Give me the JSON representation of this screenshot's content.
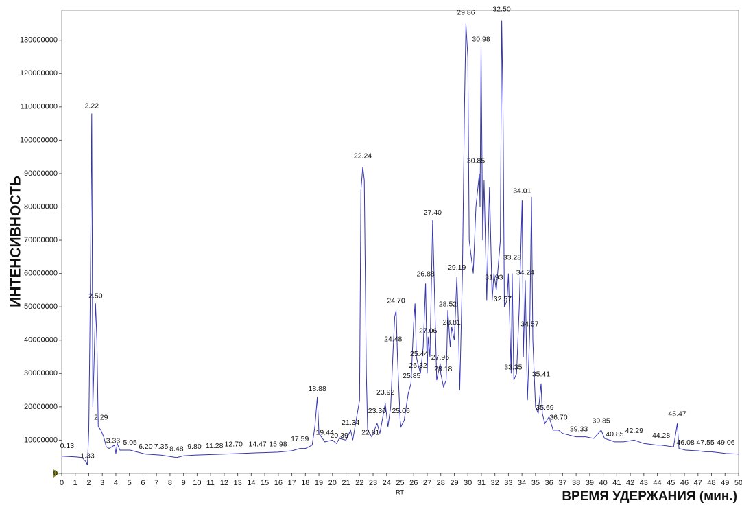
{
  "chart_data": {
    "type": "line",
    "x_label": "ВРЕМЯ УДЕРЖАНИЯ (мин.)",
    "x_sublabel": "RT",
    "y_label": "ИНТЕНСИВНОСТЬ",
    "xlim": [
      0,
      50
    ],
    "ylim": [
      0,
      139000000
    ],
    "xticks": [
      0,
      1,
      2,
      3,
      4,
      5,
      6,
      7,
      8,
      9,
      10,
      11,
      12,
      13,
      14,
      15,
      16,
      17,
      18,
      19,
      20,
      21,
      22,
      23,
      24,
      25,
      26,
      27,
      28,
      29,
      30,
      31,
      32,
      33,
      34,
      35,
      36,
      37,
      38,
      39,
      40,
      41,
      42,
      43,
      44,
      45,
      46,
      47,
      48,
      49,
      50
    ],
    "yticks": [
      0,
      10000000,
      20000000,
      30000000,
      40000000,
      50000000,
      60000000,
      70000000,
      80000000,
      90000000,
      100000000,
      110000000,
      120000000,
      130000000
    ],
    "series": [
      {
        "color": "#3535b0",
        "x": [
          0,
          1,
          1.5,
          1.8,
          1.9,
          2.0,
          2.1,
          2.22,
          2.3,
          2.4,
          2.5,
          2.6,
          2.7,
          2.9,
          3.1,
          3.3,
          3.5,
          3.9,
          4.0,
          4.1,
          4.3,
          5.05,
          5.5,
          6.2,
          7.35,
          8.48,
          9,
          9.8,
          11.28,
          12.7,
          14.47,
          15.98,
          17,
          17.59,
          18,
          18.5,
          18.7,
          18.88,
          19,
          19.44,
          20,
          20.3,
          20.5,
          21,
          21.34,
          21.5,
          22,
          22.1,
          22.24,
          22.35,
          22.5,
          22.6,
          22.9,
          23.3,
          23.5,
          23.9,
          24.1,
          24.3,
          24.48,
          24.6,
          24.7,
          24.8,
          25,
          25.06,
          25.3,
          25.6,
          25.8,
          26.0,
          26.1,
          26.2,
          26.3,
          26.5,
          26.7,
          26.88,
          27,
          27.06,
          27.2,
          27.4,
          27.5,
          27.7,
          27.96,
          28,
          28.2,
          28.4,
          28.52,
          28.7,
          28.81,
          29,
          29.19,
          29.3,
          29.4,
          29.6,
          29.75,
          29.86,
          30.0,
          30.1,
          30.4,
          30.6,
          30.85,
          30.9,
          30.98,
          31.1,
          31.2,
          31.4,
          31.6,
          31.8,
          31.93,
          32.1,
          32.4,
          32.5,
          32.6,
          32.7,
          32.9,
          33.0,
          33.1,
          33.2,
          33.28,
          33.4,
          33.6,
          33.8,
          34.01,
          34.1,
          34.24,
          34.4,
          34.57,
          34.7,
          34.8,
          35,
          35.2,
          35.41,
          35.5,
          35.69,
          36,
          36.3,
          36.7,
          37,
          37.5,
          38,
          38.7,
          39.3,
          39.85,
          40.1,
          40.85,
          41.5,
          42.29,
          43,
          44,
          44.28,
          45.2,
          45.47,
          45.6,
          46.08,
          47,
          47.55,
          48,
          49.06,
          50
        ],
        "values": [
          5200000,
          5000000,
          4800000,
          3500000,
          2500000,
          13000000,
          50000000,
          108000000,
          20000000,
          35000000,
          51000000,
          40000000,
          14000000,
          13000000,
          11000000,
          8000000,
          7500000,
          8500000,
          6000000,
          9000000,
          7000000,
          7000000,
          6500000,
          5800000,
          5500000,
          4800000,
          5300000,
          5500000,
          5700000,
          5900000,
          6200000,
          6400000,
          6800000,
          7500000,
          7500000,
          8500000,
          14000000,
          23000000,
          12000000,
          9500000,
          10000000,
          9000000,
          10500000,
          10000000,
          13000000,
          10000000,
          22000000,
          85000000,
          92000000,
          88000000,
          30000000,
          13000000,
          11000000,
          15000000,
          12000000,
          21000000,
          14000000,
          20000000,
          37000000,
          47000000,
          49000000,
          35000000,
          16000000,
          14000000,
          16000000,
          24000000,
          27000000,
          45000000,
          51000000,
          35000000,
          33000000,
          30000000,
          38000000,
          57000000,
          30000000,
          41000000,
          35000000,
          76000000,
          60000000,
          28000000,
          33000000,
          30000000,
          26000000,
          28000000,
          49000000,
          38000000,
          44000000,
          40000000,
          59000000,
          45000000,
          25000000,
          60000000,
          110000000,
          135000000,
          125000000,
          70000000,
          60000000,
          80000000,
          90000000,
          80000000,
          128000000,
          70000000,
          88000000,
          52000000,
          86000000,
          52000000,
          60000000,
          55000000,
          70000000,
          136000000,
          110000000,
          50000000,
          52000000,
          60000000,
          45000000,
          30000000,
          60000000,
          28000000,
          30000000,
          50000000,
          82000000,
          35000000,
          58000000,
          22000000,
          42000000,
          83000000,
          40000000,
          20000000,
          18000000,
          27000000,
          18000000,
          15000000,
          17000000,
          13000000,
          13000000,
          12000000,
          11500000,
          11000000,
          11000000,
          10500000,
          13000000,
          10500000,
          9500000,
          9500000,
          10000000,
          9000000,
          8500000,
          8500000,
          8000000,
          15000000,
          7500000,
          7000000,
          6800000,
          6500000,
          6500000,
          6000000,
          5800000
        ]
      }
    ],
    "annotations": [
      {
        "label": "0.13",
        "x": 0.4,
        "y": 7000000
      },
      {
        "label": "1.33",
        "x": 1.9,
        "y": 4000000
      },
      {
        "label": "2.22",
        "x": 2.22,
        "y": 109000000
      },
      {
        "label": "2.50",
        "x": 2.5,
        "y": 52000000
      },
      {
        "label": "2.29",
        "x": 2.9,
        "y": 15500000
      },
      {
        "label": "3.33",
        "x": 3.8,
        "y": 8500000
      },
      {
        "label": "5.05",
        "x": 5.05,
        "y": 8000000
      },
      {
        "label": "6.20",
        "x": 6.2,
        "y": 6800000
      },
      {
        "label": "7.35",
        "x": 7.35,
        "y": 6800000
      },
      {
        "label": "8.48",
        "x": 8.48,
        "y": 6000000
      },
      {
        "label": "9.80",
        "x": 9.8,
        "y": 6800000
      },
      {
        "label": "11.28",
        "x": 11.28,
        "y": 7000000
      },
      {
        "label": "12.70",
        "x": 12.7,
        "y": 7500000
      },
      {
        "label": "14.47",
        "x": 14.47,
        "y": 7500000
      },
      {
        "label": "15.98",
        "x": 15.98,
        "y": 7500000
      },
      {
        "label": "17.59",
        "x": 17.59,
        "y": 9000000
      },
      {
        "label": "18.88",
        "x": 18.88,
        "y": 24000000
      },
      {
        "label": "19.44",
        "x": 19.44,
        "y": 11000000
      },
      {
        "label": "20.39",
        "x": 20.5,
        "y": 10000000
      },
      {
        "label": "21.34",
        "x": 21.34,
        "y": 14000000
      },
      {
        "label": "22.24",
        "x": 22.24,
        "y": 94000000
      },
      {
        "label": "22.81",
        "x": 22.81,
        "y": 11000000
      },
      {
        "label": "23.30",
        "x": 23.3,
        "y": 17500000
      },
      {
        "label": "23.92",
        "x": 23.92,
        "y": 23000000
      },
      {
        "label": "24.48",
        "x": 24.48,
        "y": 39000000
      },
      {
        "label": "24.70",
        "x": 24.7,
        "y": 50500000
      },
      {
        "label": "25.06",
        "x": 25.06,
        "y": 17500000
      },
      {
        "label": "25.85",
        "x": 25.85,
        "y": 28000000
      },
      {
        "label": "26.32",
        "x": 26.32,
        "y": 31000000
      },
      {
        "label": "25.44",
        "x": 26.4,
        "y": 34500000
      },
      {
        "label": "26.88",
        "x": 26.88,
        "y": 58500000
      },
      {
        "label": "27.06",
        "x": 27.06,
        "y": 41500000
      },
      {
        "label": "27.40",
        "x": 27.4,
        "y": 77000000
      },
      {
        "label": "27.96",
        "x": 27.96,
        "y": 33500000
      },
      {
        "label": "28.18",
        "x": 28.18,
        "y": 30000000
      },
      {
        "label": "28.52",
        "x": 28.52,
        "y": 49500000
      },
      {
        "label": "28.81",
        "x": 28.81,
        "y": 44000000
      },
      {
        "label": "29.19",
        "x": 29.19,
        "y": 60500000
      },
      {
        "label": "29.86",
        "x": 29.86,
        "y": 137000000
      },
      {
        "label": "30.98",
        "x": 30.98,
        "y": 129000000
      },
      {
        "label": "30.85",
        "x": 30.6,
        "y": 92500000
      },
      {
        "label": "31.93",
        "x": 31.93,
        "y": 57500000
      },
      {
        "label": "32.50",
        "x": 32.5,
        "y": 138000000
      },
      {
        "label": "32.57",
        "x": 32.57,
        "y": 51000000
      },
      {
        "label": "33.28",
        "x": 33.28,
        "y": 63500000
      },
      {
        "label": "34.01",
        "x": 34.01,
        "y": 83500000
      },
      {
        "label": "34.24",
        "x": 34.24,
        "y": 59000000
      },
      {
        "label": "34.57",
        "x": 34.57,
        "y": 43500000
      },
      {
        "label": "33.35",
        "x": 33.35,
        "y": 30500000
      },
      {
        "label": "35.41",
        "x": 35.41,
        "y": 28500000
      },
      {
        "label": "35.69",
        "x": 35.69,
        "y": 18500000
      },
      {
        "label": "36.70",
        "x": 36.7,
        "y": 15500000
      },
      {
        "label": "39.33",
        "x": 38.2,
        "y": 12000000
      },
      {
        "label": "39.85",
        "x": 39.85,
        "y": 14500000
      },
      {
        "label": "40.85",
        "x": 40.85,
        "y": 10500000
      },
      {
        "label": "42.29",
        "x": 42.29,
        "y": 11500000
      },
      {
        "label": "44.28",
        "x": 44.28,
        "y": 10000000
      },
      {
        "label": "45.47",
        "x": 45.47,
        "y": 16500000
      },
      {
        "label": "46.08",
        "x": 46.08,
        "y": 8000000
      },
      {
        "label": "47.55",
        "x": 47.55,
        "y": 8000000
      },
      {
        "label": "49.06",
        "x": 49.06,
        "y": 8000000
      }
    ]
  }
}
